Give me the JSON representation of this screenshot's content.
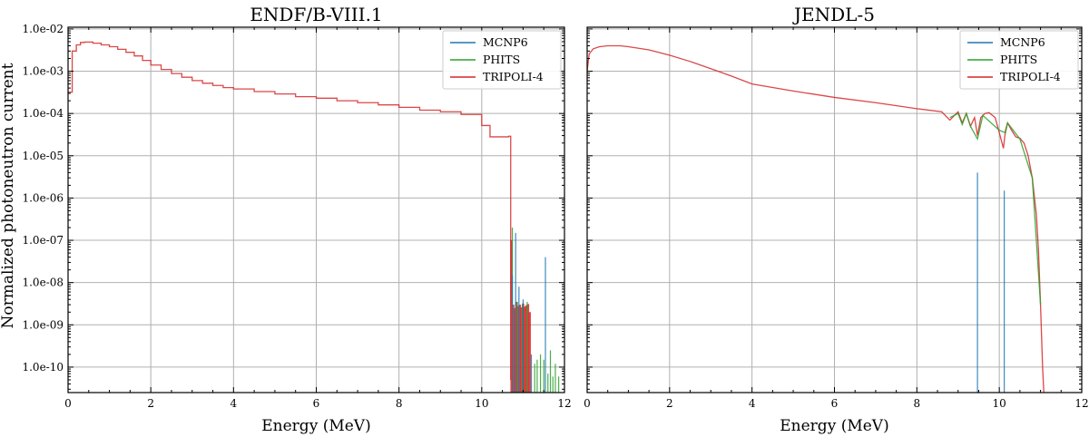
{
  "figure": {
    "ylabel": "Normalized photoneutron current",
    "legend_location": "top-right"
  },
  "colors": {
    "MCNP6": "#1f77b4",
    "PHITS": "#2ca02c",
    "TRIPOLI-4": "#d62728",
    "grid": "#b0b0b0"
  },
  "chart_data": [
    {
      "type": "line",
      "title": "ENDF/B-VIII.1",
      "xlabel": "Energy (MeV)",
      "ylabel": "Normalized photoneutron current",
      "xlim": [
        0,
        12
      ],
      "ylim": [
        2.5e-11,
        0.011
      ],
      "yscale": "log",
      "grid": true,
      "xticks": [
        0,
        2,
        4,
        6,
        8,
        10,
        12
      ],
      "xtick_labels": [
        "0",
        "2",
        "4",
        "6",
        "8",
        "10",
        "12"
      ],
      "yticks": [
        1e-10,
        1e-09,
        1e-08,
        1e-07,
        1e-06,
        1e-05,
        0.0001,
        0.001,
        0.01
      ],
      "ytick_labels": [
        "1.0e-10",
        "1.0e-09",
        "1.0e-08",
        "1.0e-07",
        "1.0e-06",
        "1.0e-05",
        "1.0e-04",
        "1.0e-03",
        "1.0e-02"
      ],
      "legend": [
        "MCNP6",
        "PHITS",
        "TRIPOLI-4"
      ],
      "series": [
        {
          "name": "TRIPOLI-4",
          "style": "step",
          "x": [
            0.0,
            0.1,
            0.2,
            0.3,
            0.4,
            0.6,
            0.8,
            1.0,
            1.2,
            1.4,
            1.6,
            1.8,
            2.0,
            2.25,
            2.5,
            2.75,
            3.0,
            3.25,
            3.5,
            3.75,
            4.0,
            4.5,
            5.0,
            5.5,
            6.0,
            6.5,
            7.0,
            7.5,
            8.0,
            8.5,
            9.0,
            9.5,
            10.0,
            10.2,
            10.65,
            10.7
          ],
          "y": [
            0.00032,
            0.003,
            0.0042,
            0.0048,
            0.0049,
            0.0046,
            0.0042,
            0.0038,
            0.0033,
            0.0028,
            0.0023,
            0.0018,
            0.0014,
            0.0011,
            0.00088,
            0.00072,
            0.0006,
            0.00052,
            0.00046,
            0.00041,
            0.00038,
            0.00033,
            0.00029,
            0.00025,
            0.00023,
            0.0002,
            0.00018,
            0.00016,
            0.00014,
            0.00012,
            0.00011,
            9.5e-05,
            5.2e-05,
            2.8e-05,
            2.9e-05,
            5e-11
          ]
        },
        {
          "name": "TRIPOLI-4",
          "style": "spikes",
          "x": [
            10.72,
            10.76,
            10.8,
            10.84,
            10.88,
            10.92,
            10.96,
            11.0,
            11.04,
            11.08,
            11.12,
            11.16
          ],
          "y": [
            1e-07,
            3e-09,
            2.5e-09,
            3.5e-09,
            2.8e-09,
            3e-09,
            2.6e-09,
            3.2e-09,
            2.7e-09,
            2.9e-09,
            3.1e-09,
            2e-09
          ]
        },
        {
          "name": "PHITS",
          "style": "spikes",
          "x": [
            10.74,
            10.86,
            10.98,
            11.1,
            11.28,
            11.34,
            11.42,
            11.5,
            11.6,
            11.66,
            11.72,
            11.78,
            11.86
          ],
          "y": [
            2e-07,
            3.5e-09,
            3e-09,
            3.5e-09,
            1.2e-10,
            1.5e-10,
            2e-10,
            1.5e-10,
            7e-11,
            2.5e-10,
            6e-11,
            1.2e-10,
            6e-11
          ]
        },
        {
          "name": "MCNP6",
          "style": "spikes",
          "x": [
            10.74,
            10.82,
            10.9,
            11.0,
            11.2,
            11.54
          ],
          "y": [
            1.5e-08,
            1.5e-07,
            8e-09,
            4e-09,
            2e-10,
            4e-08
          ]
        }
      ]
    },
    {
      "type": "line",
      "title": "JENDL-5",
      "xlabel": "Energy (MeV)",
      "ylabel": "",
      "xlim": [
        0,
        12
      ],
      "ylim": [
        2.5e-11,
        0.011
      ],
      "yscale": "log",
      "grid": true,
      "xticks": [
        0,
        2,
        4,
        6,
        8,
        10,
        12
      ],
      "xtick_labels": [
        "0",
        "2",
        "4",
        "6",
        "8",
        "10",
        "12"
      ],
      "yticks": [
        1e-10,
        1e-09,
        1e-08,
        1e-07,
        1e-06,
        1e-05,
        0.0001,
        0.001,
        0.01
      ],
      "legend": [
        "MCNP6",
        "PHITS",
        "TRIPOLI-4"
      ],
      "series": [
        {
          "name": "TRIPOLI-4",
          "style": "line",
          "x": [
            0.0,
            0.05,
            0.15,
            0.3,
            0.5,
            0.8,
            1.0,
            1.5,
            2.0,
            2.5,
            3.0,
            3.5,
            4.0,
            5.0,
            6.0,
            7.0,
            8.0,
            8.6,
            8.8,
            9.0,
            9.1,
            9.2,
            9.3,
            9.4,
            9.47,
            9.55,
            9.65,
            9.75,
            9.9,
            10.0,
            10.1,
            10.15,
            10.2,
            10.3,
            10.4,
            10.5,
            10.6,
            10.7,
            10.8,
            10.9,
            10.95,
            11.0,
            11.05,
            11.08
          ],
          "y": [
            0.001,
            0.0026,
            0.0034,
            0.0038,
            0.004,
            0.004,
            0.0038,
            0.0032,
            0.0024,
            0.0017,
            0.00115,
            0.00077,
            0.0005,
            0.00034,
            0.00024,
            0.00018,
            0.00013,
            0.00011,
            7e-05,
            0.00011,
            6e-05,
            0.0001,
            5e-05,
            8e-05,
            3e-05,
            8e-05,
            0.0001,
            0.000105,
            8e-05,
            3.5e-05,
            1.5e-05,
            4e-05,
            6e-05,
            4e-05,
            2.8e-05,
            2.6e-05,
            2e-05,
            1e-05,
            3e-06,
            4e-07,
            6e-08,
            3e-09,
            1e-10,
            2.5e-11
          ]
        },
        {
          "name": "MCNP6",
          "style": "spikes",
          "x": [
            9.47,
            10.12
          ],
          "y": [
            4e-06,
            1.5e-06
          ]
        },
        {
          "name": "PHITS",
          "style": "line",
          "x": [
            8.8,
            9.0,
            9.1,
            9.2,
            9.3,
            9.47,
            9.6,
            10.0,
            10.15,
            10.2,
            10.5,
            10.8,
            11.0
          ],
          "y": [
            8e-05,
            0.0001,
            5.5e-05,
            0.0001,
            5e-05,
            2.5e-05,
            9e-05,
            4e-05,
            3.5e-05,
            6e-05,
            2.5e-05,
            3e-06,
            3e-09
          ]
        }
      ]
    }
  ]
}
